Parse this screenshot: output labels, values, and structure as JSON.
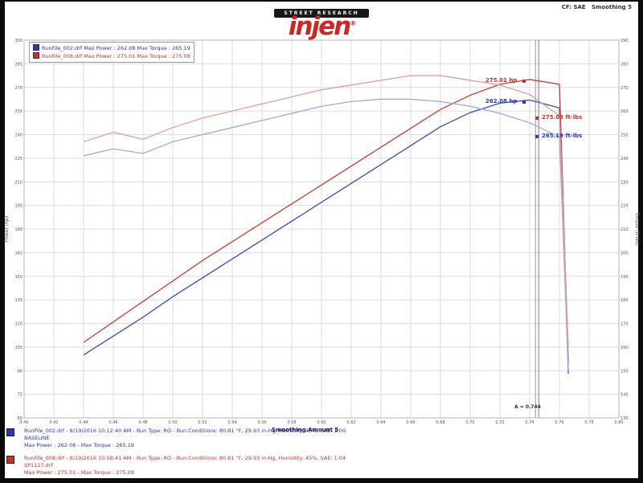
{
  "header": {
    "brand_top": "STREET RESEARCH",
    "brand": "injen",
    "brand_reg": "®",
    "correction": "CF: SAE",
    "smoothing": "Smoothing 5"
  },
  "legend": {
    "rows": [
      {
        "color": "#2a35c0",
        "text": "RunFile_002.drf Max Power : 262.08    Max Torque : 265.19"
      },
      {
        "color": "#c8302b",
        "text": "RunFile_008.drf Max Power : 275.01    Max Torque : 275.08"
      }
    ]
  },
  "footer": {
    "overlay_text": "Smoothing Amount 5",
    "blue": {
      "line1": "RunFile_002.drf - 8/19/2016 10:12:40 AM - Run Type: RO - Run Conditions: 80.81 °F, 29.93 in-Hg, Humidity: 45%, SAE: 1.00",
      "line2": "BASELINE",
      "line3": "Max Power : 262.08 - Max Torque : 265.19"
    },
    "red": {
      "line1": "RunFile_008.drf - 8/19/2016 10:58:41 AM - Run Type: RO - Run Conditions: 80.81 °F, 29.93 in-Hg, Humidity: 45%, SAE: 1.04",
      "line2": "SP1127.drf",
      "line3": "Max Power : 275.01 - Max Torque : 275.08"
    }
  },
  "chart_data": {
    "type": "line",
    "title": "",
    "ylabel_left": "Power (hp)",
    "ylabel_right": "Torque (ft-lbs)",
    "ylim_left": [
      60,
      300
    ],
    "ytick_step_left": 15,
    "ylim_right": [
      130,
      290
    ],
    "ytick_step_right": 10,
    "xlim": [
      0.4,
      0.8
    ],
    "x_ticks": [
      0.4,
      0.42,
      0.44,
      0.46,
      0.48,
      0.5,
      0.52,
      0.54,
      0.56,
      0.58,
      0.6,
      0.62,
      0.64,
      0.66,
      0.68,
      0.7,
      0.72,
      0.74,
      0.76,
      0.78,
      0.8
    ],
    "x": [
      0.44,
      0.46,
      0.48,
      0.5,
      0.52,
      0.54,
      0.56,
      0.58,
      0.6,
      0.62,
      0.64,
      0.66,
      0.68,
      0.7,
      0.72,
      0.74,
      0.76,
      0.766
    ],
    "series": [
      {
        "name": "BASELINE Power",
        "axis": "left",
        "color": "#3d49c9",
        "values": [
          100,
          112,
          124,
          137,
          149,
          161,
          173,
          185,
          197,
          209,
          221,
          233,
          245,
          254,
          260,
          262,
          257,
          88
        ]
      },
      {
        "name": "SP1127 Power",
        "axis": "left",
        "color": "#cc3a33",
        "values": [
          108,
          121,
          134,
          147,
          160,
          172,
          184,
          196,
          208,
          220,
          232,
          244,
          256,
          265,
          272,
          275,
          272,
          95
        ]
      },
      {
        "name": "BASELINE Torque",
        "axis": "right",
        "color": "#9cabde",
        "values": [
          241,
          244,
          242,
          247,
          250,
          253,
          256,
          259,
          262,
          264,
          265,
          265,
          264,
          262,
          259,
          255,
          249,
          150
        ]
      },
      {
        "name": "SP1127 Torque",
        "axis": "right",
        "color": "#e59d97",
        "values": [
          247,
          251,
          248,
          253,
          257,
          260,
          263,
          266,
          269,
          271,
          273,
          275,
          275,
          273,
          271,
          267,
          258,
          160
        ]
      }
    ],
    "cursor": {
      "label": "A = 0.744",
      "x": 0.745
    },
    "callouts": [
      {
        "text": "275.01 hp",
        "color": "#c8302b",
        "dot": [
          652,
          101
        ]
      },
      {
        "text": "262.08 hp",
        "color": "#2a35c0",
        "dot": [
          652,
          127
        ]
      },
      {
        "text": "275.08 ft-lbs",
        "color": "#c8302b",
        "dot": [
          668,
          147
        ]
      },
      {
        "text": "265.19 ft-lbs",
        "color": "#2a35c0",
        "dot": [
          668,
          170
        ]
      }
    ],
    "legend_position": "top-left",
    "grid": true
  }
}
